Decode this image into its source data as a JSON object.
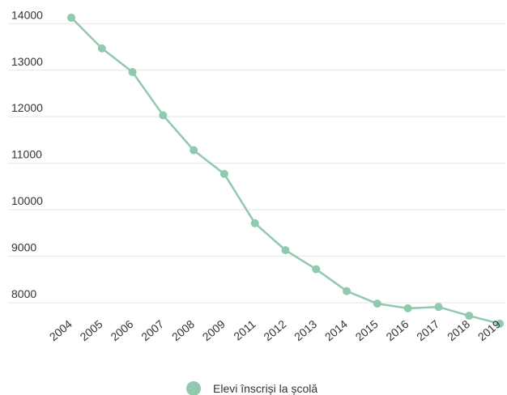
{
  "chart_data": {
    "type": "line",
    "categories": [
      "2004",
      "2005",
      "2006",
      "2007",
      "2008",
      "2009",
      "2011",
      "2012",
      "2013",
      "2014",
      "2015",
      "2016",
      "2017",
      "2018",
      "2019"
    ],
    "series": [
      {
        "name": "Elevi înscriși la școlă",
        "color": "#8fc9ae",
        "values": [
          14130,
          13470,
          12960,
          12030,
          11280,
          10770,
          9710,
          9130,
          8720,
          8250,
          7980,
          7880,
          7910,
          7720,
          7550
        ]
      }
    ],
    "y_ticks": [
      "14000",
      "13000",
      "12000",
      "11000",
      "10000",
      "9000",
      "8000"
    ],
    "ylim": [
      7500,
      14200
    ],
    "grid": true,
    "legend_position": "bottom-center",
    "title": "",
    "xlabel": "",
    "ylabel": ""
  }
}
